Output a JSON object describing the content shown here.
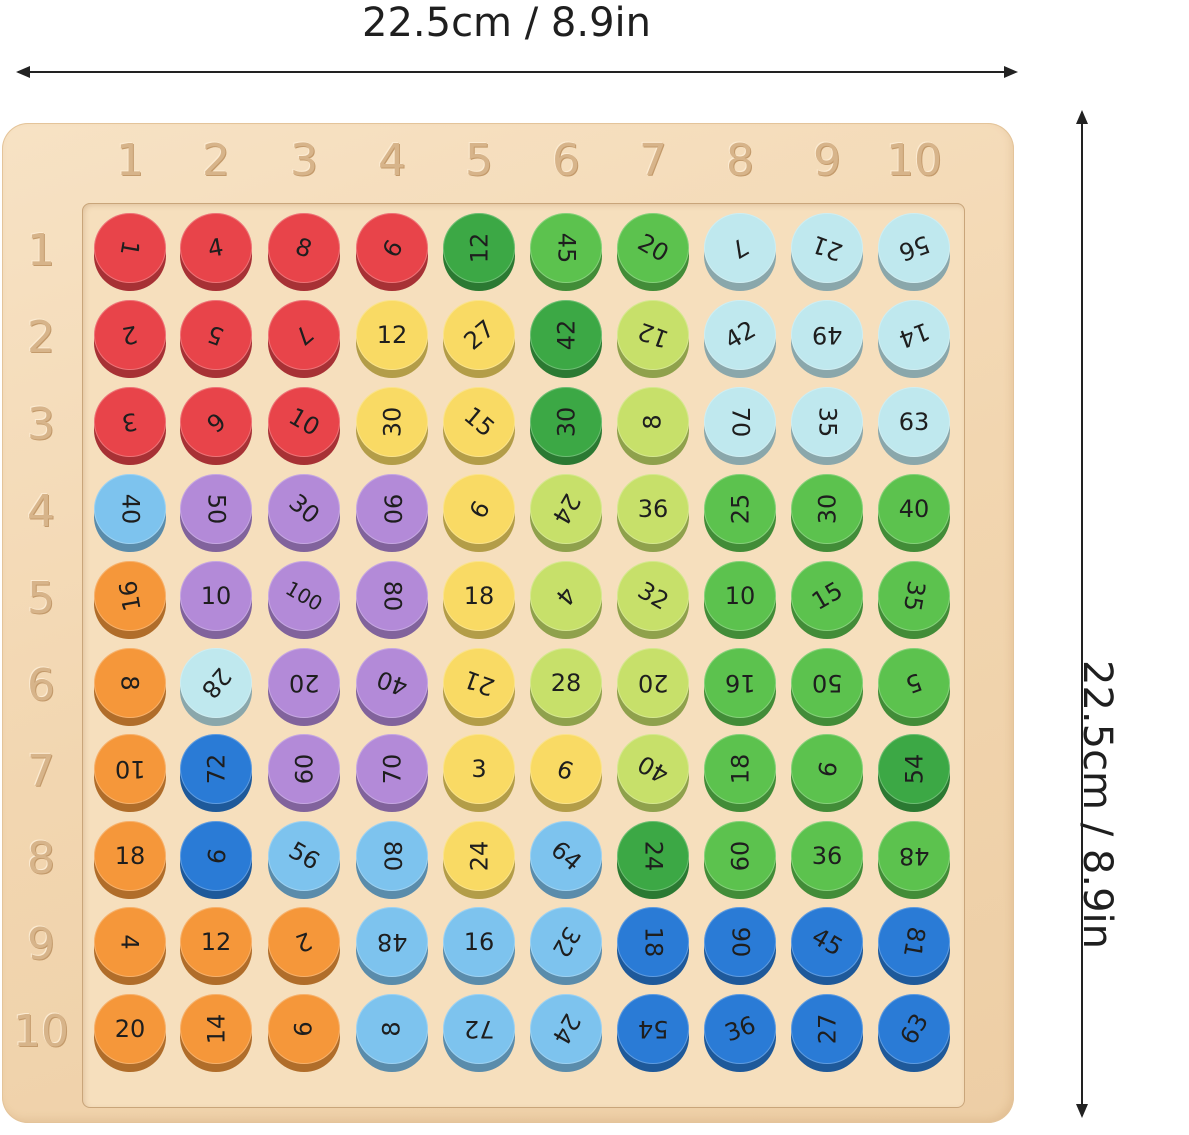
{
  "dimensions": {
    "width_label": "22.5cm / 8.9in",
    "height_label": "22.5cm / 8.9in"
  },
  "board": {
    "column_numbers": [
      "1",
      "2",
      "3",
      "4",
      "5",
      "6",
      "7",
      "8",
      "9",
      "10"
    ],
    "row_numbers": [
      "1",
      "2",
      "3",
      "4",
      "5",
      "6",
      "7",
      "8",
      "9",
      "10"
    ],
    "colors": {
      "red": "#e8444a",
      "purple": "#b38ad8",
      "orange": "#f5973a",
      "yellow": "#f9da64",
      "lime": "#c7e06a",
      "green": "#5cc24e",
      "darkgreen": "#3ca845",
      "lightblue": "#bfe8ee",
      "skyblue": "#7dc3ee",
      "blue": "#2a7bd6"
    },
    "rows": [
      [
        {
          "n": "1",
          "c": "red",
          "r": 100
        },
        {
          "n": "4",
          "c": "red",
          "r": -10
        },
        {
          "n": "8",
          "c": "red",
          "r": 20
        },
        {
          "n": "9",
          "c": "red",
          "r": 120
        },
        {
          "n": "12",
          "c": "darkgreen",
          "r": -90
        },
        {
          "n": "45",
          "c": "green",
          "r": 90
        },
        {
          "n": "20",
          "c": "green",
          "r": 30
        },
        {
          "n": "7",
          "c": "lightblue",
          "r": 150
        },
        {
          "n": "21",
          "c": "lightblue",
          "r": 200
        },
        {
          "n": "56",
          "c": "lightblue",
          "r": 160
        }
      ],
      [
        {
          "n": "2",
          "c": "red",
          "r": 170
        },
        {
          "n": "5",
          "c": "red",
          "r": 200
        },
        {
          "n": "7",
          "c": "red",
          "r": 140
        },
        {
          "n": "12",
          "c": "yellow",
          "r": 0
        },
        {
          "n": "27",
          "c": "yellow",
          "r": -40
        },
        {
          "n": "42",
          "c": "darkgreen",
          "r": -90
        },
        {
          "n": "12",
          "c": "lime",
          "r": 200
        },
        {
          "n": "42",
          "c": "lightblue",
          "r": -30
        },
        {
          "n": "49",
          "c": "lightblue",
          "r": 180
        },
        {
          "n": "14",
          "c": "lightblue",
          "r": 160
        }
      ],
      [
        {
          "n": "3",
          "c": "red",
          "r": 170
        },
        {
          "n": "6",
          "c": "red",
          "r": 140
        },
        {
          "n": "10",
          "c": "red",
          "r": 30
        },
        {
          "n": "30",
          "c": "yellow",
          "r": -90
        },
        {
          "n": "15",
          "c": "yellow",
          "r": 40
        },
        {
          "n": "30",
          "c": "darkgreen",
          "r": -90
        },
        {
          "n": "8",
          "c": "lime",
          "r": -90
        },
        {
          "n": "70",
          "c": "lightblue",
          "r": 90
        },
        {
          "n": "35",
          "c": "lightblue",
          "r": 90
        },
        {
          "n": "63",
          "c": "lightblue",
          "r": 0
        }
      ],
      [
        {
          "n": "40",
          "c": "skyblue",
          "r": 90
        },
        {
          "n": "50",
          "c": "purple",
          "r": 90
        },
        {
          "n": "30",
          "c": "purple",
          "r": 40
        },
        {
          "n": "90",
          "c": "purple",
          "r": 90
        },
        {
          "n": "9",
          "c": "yellow",
          "r": 120
        },
        {
          "n": "24",
          "c": "lime",
          "r": 120
        },
        {
          "n": "36",
          "c": "lime",
          "r": 0
        },
        {
          "n": "25",
          "c": "green",
          "r": -90
        },
        {
          "n": "30",
          "c": "green",
          "r": -90
        },
        {
          "n": "40",
          "c": "green",
          "r": 0
        }
      ],
      [
        {
          "n": "16",
          "c": "orange",
          "r": -100
        },
        {
          "n": "10",
          "c": "purple",
          "r": 0
        },
        {
          "n": "100",
          "c": "purple",
          "r": 30
        },
        {
          "n": "80",
          "c": "purple",
          "r": 90
        },
        {
          "n": "18",
          "c": "yellow",
          "r": 0
        },
        {
          "n": "4",
          "c": "lime",
          "r": 130
        },
        {
          "n": "32",
          "c": "lime",
          "r": 30
        },
        {
          "n": "10",
          "c": "green",
          "r": 0
        },
        {
          "n": "15",
          "c": "green",
          "r": -30
        },
        {
          "n": "35",
          "c": "green",
          "r": 100
        }
      ],
      [
        {
          "n": "8",
          "c": "orange",
          "r": 90
        },
        {
          "n": "28",
          "c": "lightblue",
          "r": 130
        },
        {
          "n": "20",
          "c": "purple",
          "r": 180
        },
        {
          "n": "40",
          "c": "purple",
          "r": 200
        },
        {
          "n": "21",
          "c": "yellow",
          "r": 200
        },
        {
          "n": "28",
          "c": "lime",
          "r": 0
        },
        {
          "n": "20",
          "c": "lime",
          "r": 180
        },
        {
          "n": "16",
          "c": "green",
          "r": 180
        },
        {
          "n": "50",
          "c": "green",
          "r": 180
        },
        {
          "n": "5",
          "c": "green",
          "r": 160
        }
      ],
      [
        {
          "n": "10",
          "c": "orange",
          "r": 180
        },
        {
          "n": "72",
          "c": "blue",
          "r": -90
        },
        {
          "n": "60",
          "c": "purple",
          "r": -90
        },
        {
          "n": "70",
          "c": "purple",
          "r": -90
        },
        {
          "n": "3",
          "c": "yellow",
          "r": 0
        },
        {
          "n": "9",
          "c": "yellow",
          "r": 200
        },
        {
          "n": "40",
          "c": "lime",
          "r": -150
        },
        {
          "n": "18",
          "c": "green",
          "r": -90
        },
        {
          "n": "9",
          "c": "green",
          "r": 100
        },
        {
          "n": "54",
          "c": "darkgreen",
          "r": -90
        }
      ],
      [
        {
          "n": "18",
          "c": "orange",
          "r": 0
        },
        {
          "n": "9",
          "c": "blue",
          "r": 100
        },
        {
          "n": "56",
          "c": "skyblue",
          "r": 30
        },
        {
          "n": "80",
          "c": "skyblue",
          "r": 90
        },
        {
          "n": "24",
          "c": "yellow",
          "r": -90
        },
        {
          "n": "64",
          "c": "skyblue",
          "r": 40
        },
        {
          "n": "24",
          "c": "darkgreen",
          "r": 90
        },
        {
          "n": "60",
          "c": "green",
          "r": -90
        },
        {
          "n": "36",
          "c": "green",
          "r": 0
        },
        {
          "n": "48",
          "c": "green",
          "r": 180
        }
      ],
      [
        {
          "n": "4",
          "c": "orange",
          "r": 90
        },
        {
          "n": "12",
          "c": "orange",
          "r": 0
        },
        {
          "n": "2",
          "c": "orange",
          "r": 160
        },
        {
          "n": "48",
          "c": "skyblue",
          "r": 180
        },
        {
          "n": "16",
          "c": "skyblue",
          "r": 0
        },
        {
          "n": "32",
          "c": "skyblue",
          "r": 120
        },
        {
          "n": "18",
          "c": "blue",
          "r": 90
        },
        {
          "n": "90",
          "c": "blue",
          "r": 90
        },
        {
          "n": "45",
          "c": "blue",
          "r": 30
        },
        {
          "n": "81",
          "c": "blue",
          "r": 100
        }
      ],
      [
        {
          "n": "20",
          "c": "orange",
          "r": 0
        },
        {
          "n": "14",
          "c": "orange",
          "r": -90
        },
        {
          "n": "6",
          "c": "orange",
          "r": -90
        },
        {
          "n": "8",
          "c": "skyblue",
          "r": -90
        },
        {
          "n": "72",
          "c": "skyblue",
          "r": 180
        },
        {
          "n": "24",
          "c": "skyblue",
          "r": 120
        },
        {
          "n": "54",
          "c": "blue",
          "r": 180
        },
        {
          "n": "36",
          "c": "blue",
          "r": -20
        },
        {
          "n": "27",
          "c": "blue",
          "r": -90
        },
        {
          "n": "63",
          "c": "blue",
          "r": -60
        }
      ]
    ]
  }
}
